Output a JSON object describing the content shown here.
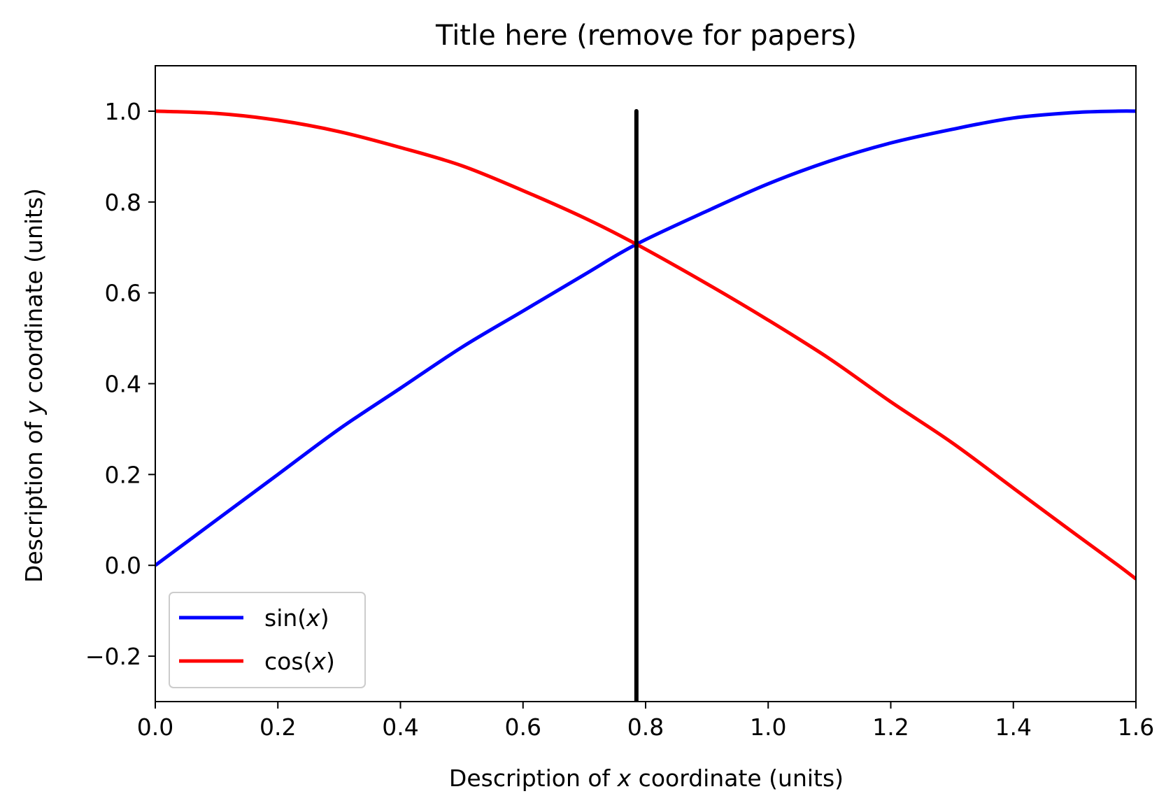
{
  "chart_data": {
    "type": "line",
    "title": "Title here (remove for papers)",
    "xlabel": {
      "prefix": "Description of ",
      "variable": "x",
      "suffix": " coordinate (units)"
    },
    "ylabel": {
      "prefix": "Description of ",
      "variable": "y",
      "suffix": " coordinate (units)"
    },
    "xlim": [
      0.0,
      1.6
    ],
    "ylim": [
      -0.3,
      1.1
    ],
    "x_ticks": [
      0.0,
      0.2,
      0.4,
      0.6,
      0.8,
      1.0,
      1.2,
      1.4,
      1.6
    ],
    "x_tick_labels": [
      "0.0",
      "0.2",
      "0.4",
      "0.6",
      "0.8",
      "1.0",
      "1.2",
      "1.4",
      "1.6"
    ],
    "y_ticks": [
      -0.2,
      0.0,
      0.2,
      0.4,
      0.6,
      0.8,
      1.0
    ],
    "y_tick_labels": [
      "−0.2",
      "0.0",
      "0.2",
      "0.4",
      "0.6",
      "0.8",
      "1.0"
    ],
    "grid": false,
    "legend_position": "lower-left",
    "x": [
      0.0,
      0.1,
      0.2,
      0.3,
      0.4,
      0.5,
      0.6,
      0.7,
      0.785,
      0.9,
      1.0,
      1.1,
      1.2,
      1.3,
      1.4,
      1.5,
      1.571,
      1.6
    ],
    "series": [
      {
        "name": "sin(x)",
        "legend_parts": [
          "sin(",
          "x",
          ")"
        ],
        "color": "#0000ff",
        "values": [
          0.0,
          0.1,
          0.2,
          0.3,
          0.39,
          0.48,
          0.56,
          0.64,
          0.707,
          0.78,
          0.84,
          0.89,
          0.93,
          0.96,
          0.985,
          0.997,
          1.0,
          1.0
        ]
      },
      {
        "name": "cos(x)",
        "legend_parts": [
          "cos(",
          "x",
          ")"
        ],
        "color": "#ff0000",
        "values": [
          1.0,
          0.995,
          0.98,
          0.955,
          0.92,
          0.88,
          0.825,
          0.765,
          0.707,
          0.62,
          0.54,
          0.455,
          0.36,
          0.27,
          0.17,
          0.07,
          0.0,
          -0.03
        ]
      }
    ],
    "vertical_line": {
      "x": 0.785,
      "y_top": 1.0,
      "color": "#000000"
    }
  }
}
